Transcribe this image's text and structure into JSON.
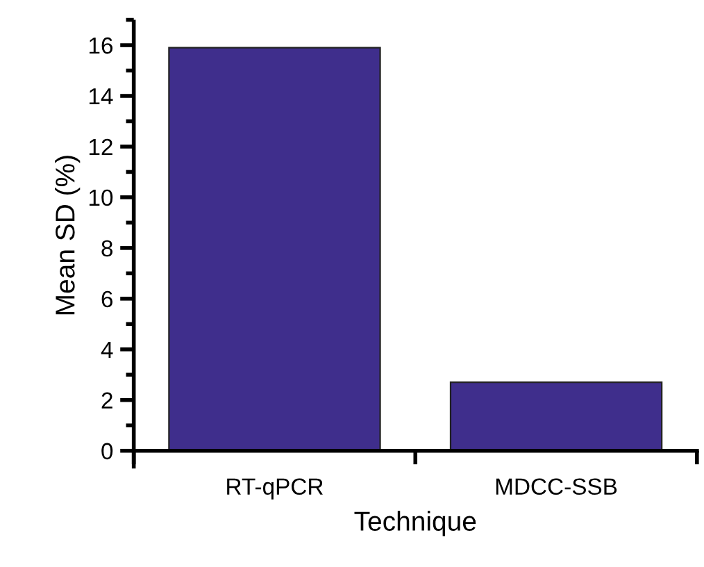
{
  "chart_data": {
    "type": "bar",
    "xlabel": "Technique",
    "ylabel": "Mean SD (%)",
    "categories": [
      "RT-qPCR",
      "MDCC-SSB"
    ],
    "values": [
      15.9,
      2.7
    ],
    "color": "#3f2e8c",
    "ylim": [
      0,
      17
    ],
    "yticks": [
      0,
      2,
      4,
      6,
      8,
      10,
      12,
      14,
      16
    ],
    "grid": false
  }
}
